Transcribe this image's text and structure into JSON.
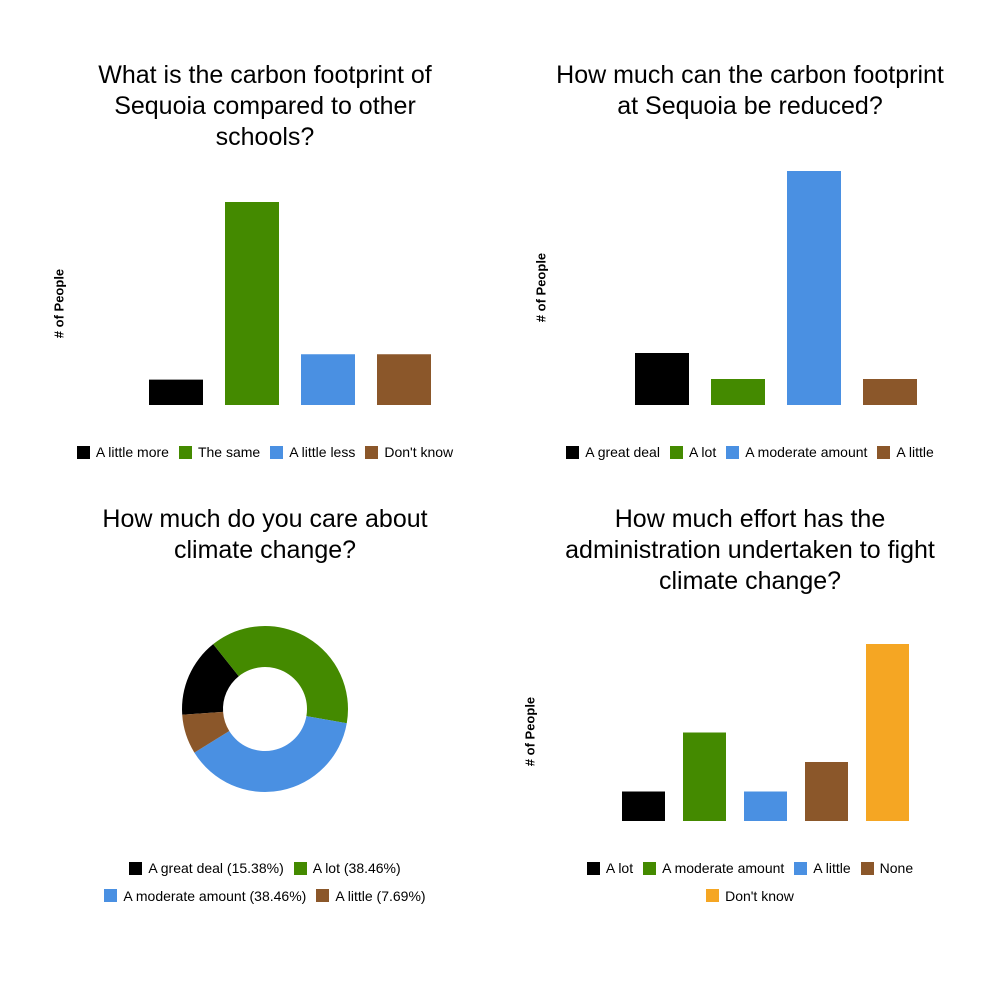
{
  "colors": {
    "black": "#000000",
    "green": "#448a00",
    "blue": "#4a90e2",
    "brown": "#8b572a",
    "orange": "#f5a623"
  },
  "chart_data": [
    {
      "type": "bar",
      "title": "What is the carbon footprint of\nSequoia compared to other\nschools?",
      "ylabel": "# of People",
      "categories": [
        "A little more",
        "The same",
        "A little less",
        "Don't know"
      ],
      "values": [
        1,
        8,
        2,
        2
      ],
      "colors": [
        "#000000",
        "#448a00",
        "#4a90e2",
        "#8b572a"
      ],
      "ylim": [
        0,
        8
      ],
      "grid": false,
      "legend": "bottom"
    },
    {
      "type": "bar",
      "title": "How much can the carbon footprint\nat Sequoia be reduced?",
      "ylabel": "# of People",
      "categories": [
        "A great deal",
        "A lot",
        "A moderate amount",
        "A little"
      ],
      "values": [
        2,
        1,
        9,
        1
      ],
      "colors": [
        "#000000",
        "#448a00",
        "#4a90e2",
        "#8b572a"
      ],
      "ylim": [
        0,
        9
      ],
      "grid": false,
      "legend": "bottom"
    },
    {
      "type": "pie",
      "title": "How much do you care about\nclimate change?",
      "categories": [
        "A great deal",
        "A lot",
        "A moderate amount",
        "A little"
      ],
      "values": [
        15.38,
        38.46,
        38.46,
        7.69
      ],
      "legend_labels": [
        "A great deal (15.38%)",
        "A lot (38.46%)",
        "A moderate amount (38.46%)",
        "A little (7.69%)"
      ],
      "colors": [
        "#000000",
        "#448a00",
        "#4a90e2",
        "#8b572a"
      ],
      "legend": "bottom"
    },
    {
      "type": "bar",
      "title": "How much effort has the\nadministration undertaken to fight\nclimate change?",
      "ylabel": "# of People",
      "categories": [
        "A lot",
        "A moderate amount",
        "A little",
        "None",
        "Don't know"
      ],
      "values": [
        1,
        3,
        1,
        2,
        6
      ],
      "colors": [
        "#000000",
        "#448a00",
        "#4a90e2",
        "#8b572a",
        "#f5a623"
      ],
      "ylim": [
        0,
        6
      ],
      "grid": false,
      "legend": "bottom"
    }
  ]
}
